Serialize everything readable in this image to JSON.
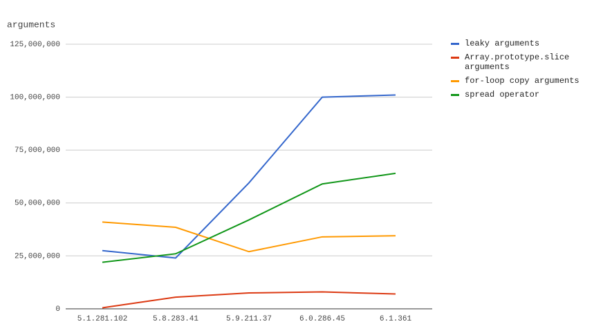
{
  "chart_data": {
    "type": "line",
    "title": "arguments",
    "categories": [
      "5.1.281.102",
      "5.8.283.41",
      "5.9.211.37",
      "6.0.286.45",
      "6.1.361"
    ],
    "series": [
      {
        "name": "leaky arguments",
        "color": "#3366cc",
        "values": [
          27500000,
          24000000,
          59500000,
          100000000,
          101000000
        ]
      },
      {
        "name": "Array.prototype.slice arguments",
        "color": "#dc3912",
        "values": [
          500000,
          5500000,
          7500000,
          8000000,
          7000000
        ]
      },
      {
        "name": "for-loop copy arguments",
        "color": "#ff9900",
        "values": [
          41000000,
          38500000,
          27000000,
          34000000,
          34500000
        ]
      },
      {
        "name": "spread operator",
        "color": "#109618",
        "values": [
          22000000,
          26000000,
          42000000,
          59000000,
          64000000
        ]
      }
    ],
    "ylim": [
      0,
      125000000
    ],
    "yticks": [
      {
        "value": 0,
        "label": "0"
      },
      {
        "value": 25000000,
        "label": "25,000,000"
      },
      {
        "value": 50000000,
        "label": "50,000,000"
      },
      {
        "value": 75000000,
        "label": "75,000,000"
      },
      {
        "value": 100000000,
        "label": "100,000,000"
      },
      {
        "value": 125000000,
        "label": "125,000,000"
      }
    ],
    "grid": true,
    "legend": "right"
  }
}
